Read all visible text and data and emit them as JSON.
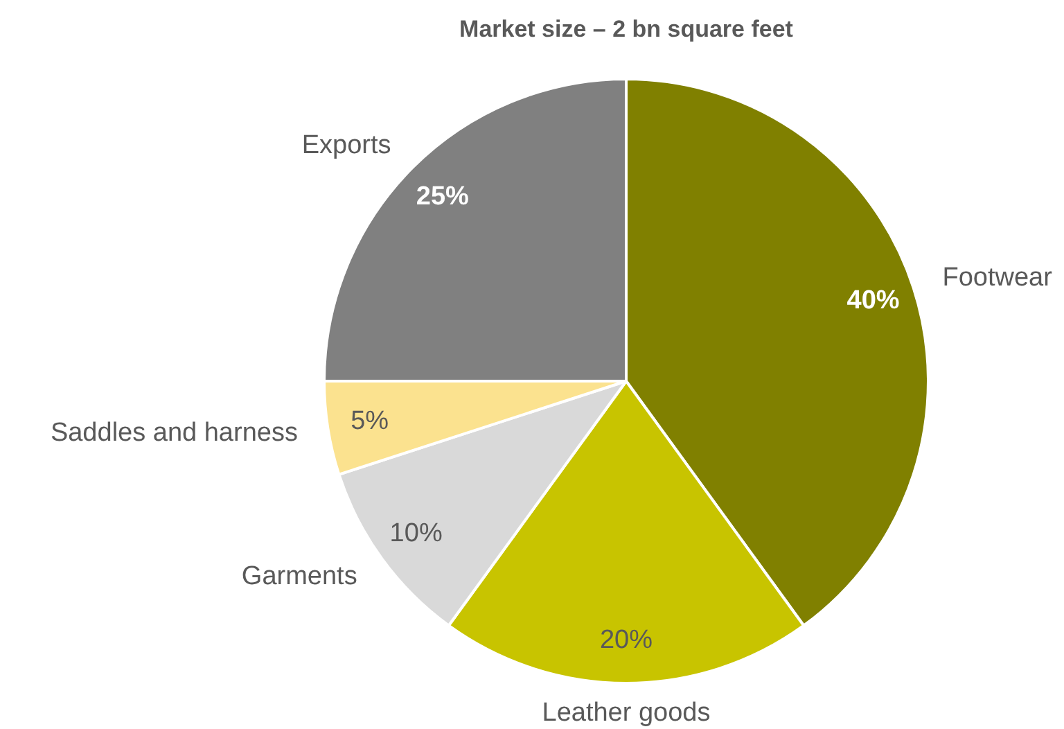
{
  "chart_data": {
    "type": "pie",
    "title": "Market size – 2 bn square feet",
    "categories": [
      "Footwear",
      "Leather goods",
      "Garments",
      "Saddles and harness",
      "Exports"
    ],
    "values": [
      40,
      20,
      10,
      5,
      25
    ],
    "colors": [
      "#808000",
      "#c8c400",
      "#d9d9d9",
      "#fbe28f",
      "#808080"
    ],
    "value_labels": [
      "40%",
      "20%",
      "10%",
      "5%",
      "25%"
    ],
    "legend": false
  }
}
